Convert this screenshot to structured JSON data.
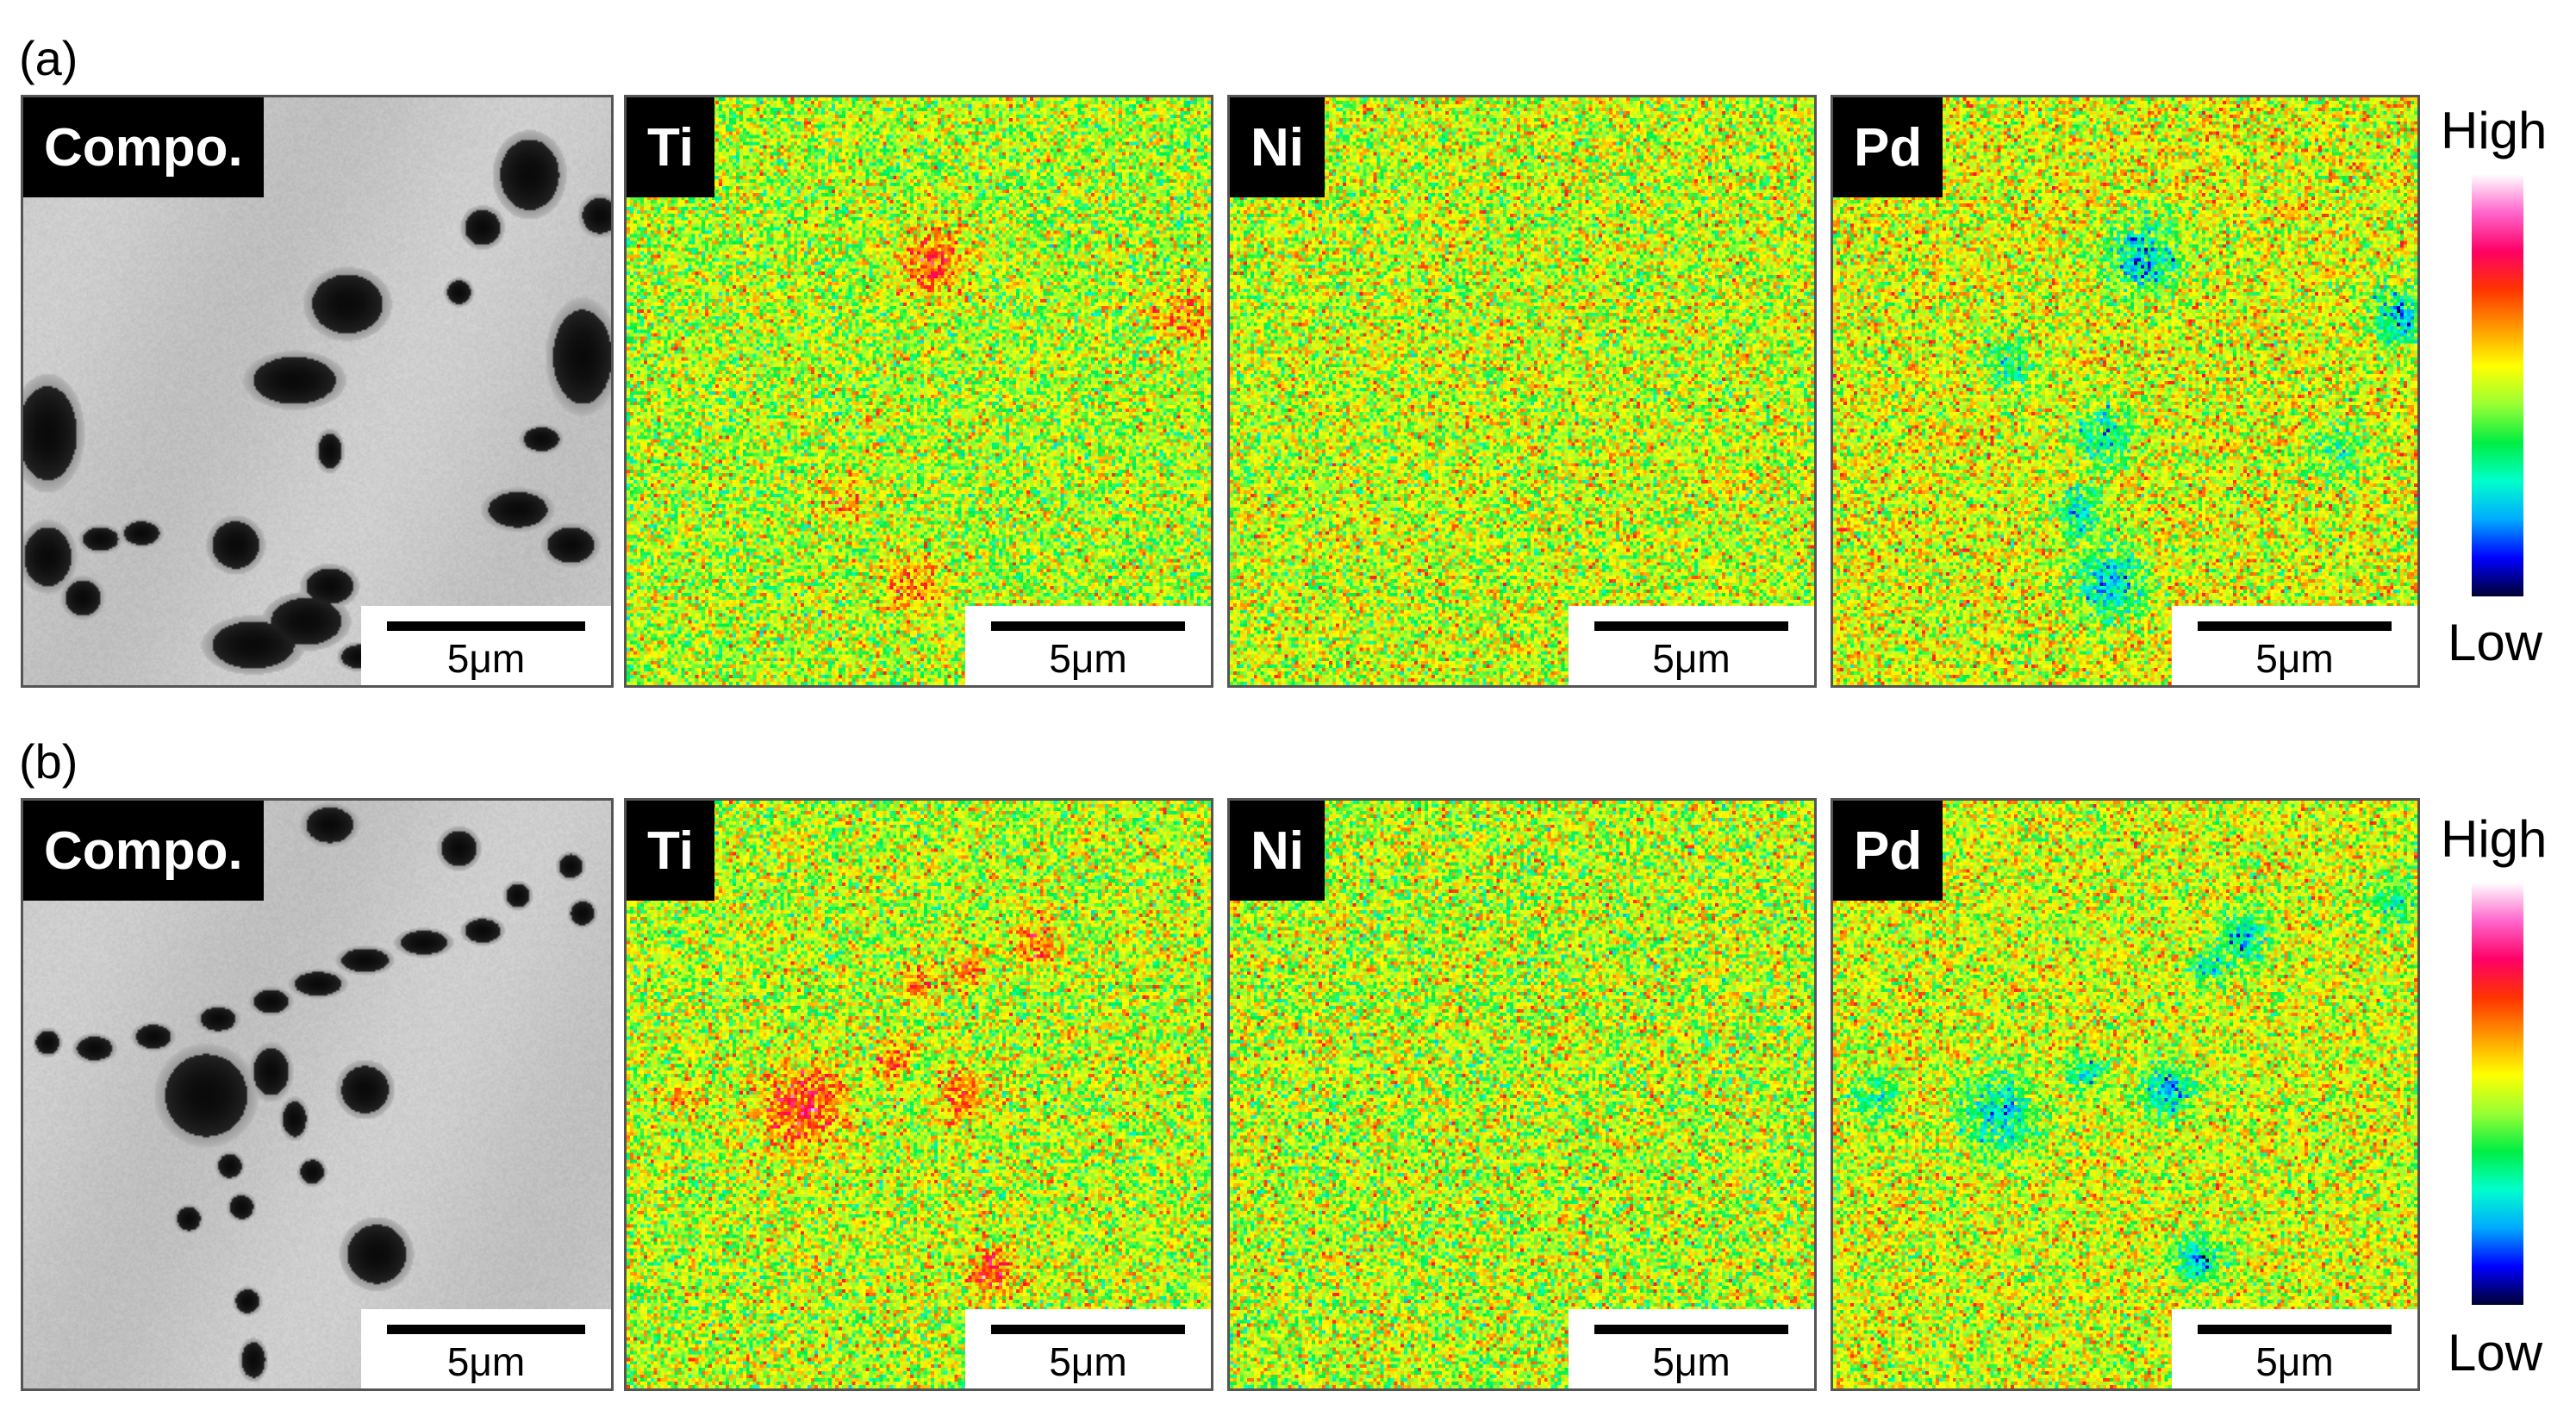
{
  "rows": [
    {
      "label": "(a)",
      "panels": [
        {
          "name": "compo",
          "tag": "Compo.",
          "scale": "5μm"
        },
        {
          "name": "ti",
          "tag": "Ti",
          "scale": "5μm"
        },
        {
          "name": "ni",
          "tag": "Ni",
          "scale": "5μm"
        },
        {
          "name": "pd",
          "tag": "Pd",
          "scale": "5μm"
        }
      ],
      "colorbar": {
        "high": "High",
        "low": "Low"
      }
    },
    {
      "label": "(b)",
      "panels": [
        {
          "name": "compo",
          "tag": "Compo.",
          "scale": "5μm"
        },
        {
          "name": "ti",
          "tag": "Ti",
          "scale": "5μm"
        },
        {
          "name": "ni",
          "tag": "Ni",
          "scale": "5μm"
        },
        {
          "name": "pd",
          "tag": "Pd",
          "scale": "5μm"
        }
      ],
      "colorbar": {
        "high": "High",
        "low": "Low"
      }
    }
  ],
  "colormap": [
    "#ffffff",
    "#ff66cc",
    "#ff0066",
    "#ff3300",
    "#ff9900",
    "#ffff00",
    "#99ff33",
    "#00ee44",
    "#00ffcc",
    "#00aaff",
    "#0000ff",
    "#000033"
  ]
}
